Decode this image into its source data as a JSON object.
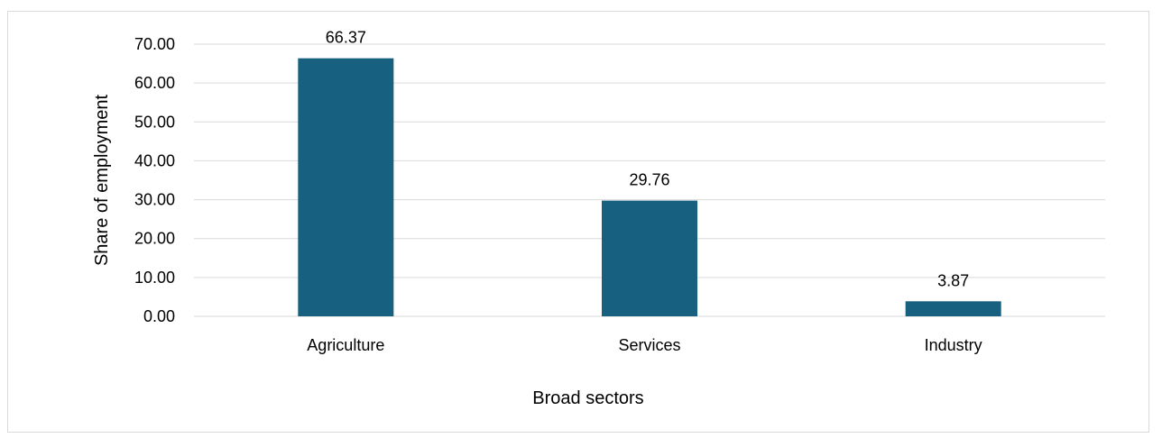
{
  "chart_data": {
    "type": "bar",
    "categories": [
      "Agriculture",
      "Services",
      "Industry"
    ],
    "values": [
      66.37,
      29.76,
      3.87
    ],
    "data_labels": [
      "66.37",
      "29.76",
      "3.87"
    ],
    "title": "",
    "xlabel": "Broad sectors",
    "ylabel": "Share of employment",
    "ylim": [
      0,
      70
    ],
    "yticks": [
      "0.00",
      "10.00",
      "20.00",
      "30.00",
      "40.00",
      "50.00",
      "60.00",
      "70.00"
    ],
    "grid": true,
    "legend": "none",
    "bar_color": "#17607f",
    "grid_color": "#d9d9d9"
  }
}
